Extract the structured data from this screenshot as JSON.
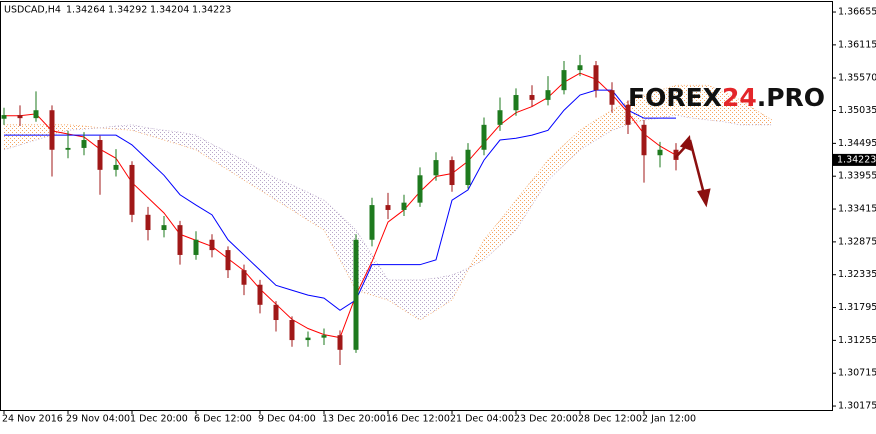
{
  "chart_data": {
    "type": "candlestick",
    "symbol": "USDCAD,H4",
    "ohlc_info": [
      1.34264,
      1.34292,
      1.34204,
      1.34223
    ],
    "current_price": 1.34223,
    "watermark": [
      "FOREX",
      "24",
      ".PRO"
    ],
    "categories": [
      "24 Nov 2016",
      null,
      null,
      null,
      "29 Nov 04:00",
      null,
      null,
      null,
      "1 Dec 20:00",
      null,
      null,
      null,
      "6 Dec 12:00",
      null,
      null,
      null,
      "9 Dec 04:00",
      null,
      null,
      null,
      "13 Dec 20:00",
      null,
      null,
      null,
      "16 Dec 12:00",
      null,
      null,
      null,
      "21 Dec 04:00",
      null,
      null,
      null,
      "23 Dec 20:00",
      null,
      null,
      null,
      "28 Dec 12:00",
      null,
      null,
      null,
      "2 Jan 12:00",
      null,
      null,
      null,
      null,
      null,
      null,
      null,
      null
    ],
    "open": [
      1.349,
      1.3496,
      1.3491,
      1.3504,
      1.3439,
      1.3442,
      1.3455,
      1.3406,
      1.3414,
      1.3332,
      1.3307,
      1.3315,
      1.3266,
      1.3291,
      1.3274,
      1.3241,
      1.3217,
      1.3184,
      1.3159,
      1.3126,
      1.313,
      1.3134,
      1.311,
      1.3291,
      1.3348,
      1.334,
      1.3352,
      1.3397,
      1.3422,
      1.3381,
      1.3439,
      1.348,
      1.3504,
      1.3529,
      1.3521,
      1.3537,
      1.357,
      1.3578,
      1.3537,
      1.3513,
      1.348,
      1.343,
      1.3439,
      null,
      null,
      null,
      null,
      null,
      null
    ],
    "high": [
      1.3508,
      1.3512,
      1.3535,
      1.3512,
      1.347,
      1.3468,
      1.3462,
      1.344,
      1.342,
      1.3345,
      1.333,
      1.3322,
      1.3305,
      1.33,
      1.328,
      1.325,
      1.3225,
      1.319,
      1.3165,
      1.314,
      1.3145,
      1.3142,
      1.33,
      1.336,
      1.3368,
      1.3365,
      1.341,
      1.3435,
      1.3428,
      1.345,
      1.3492,
      1.3525,
      1.354,
      1.3545,
      1.356,
      1.3585,
      1.3595,
      1.3585,
      1.355,
      1.352,
      1.3488,
      1.3452,
      1.345,
      null,
      null,
      null,
      null,
      null,
      null
    ],
    "low": [
      1.348,
      1.3478,
      1.3485,
      1.3395,
      1.3425,
      1.343,
      1.3365,
      1.3395,
      1.332,
      1.329,
      1.3295,
      1.325,
      1.3258,
      1.3262,
      1.3228,
      1.32,
      1.317,
      1.314,
      1.3115,
      1.3115,
      1.3118,
      1.3085,
      1.3105,
      1.328,
      1.3325,
      1.333,
      1.3345,
      1.3388,
      1.337,
      1.3375,
      1.343,
      1.347,
      1.3495,
      1.351,
      1.3512,
      1.353,
      1.356,
      1.3525,
      1.35,
      1.3465,
      1.3385,
      1.341,
      1.3405,
      null,
      null,
      null,
      null,
      null,
      null
    ],
    "close": [
      1.3496,
      1.3491,
      1.3504,
      1.3439,
      1.3442,
      1.3455,
      1.3406,
      1.3414,
      1.3332,
      1.3307,
      1.3315,
      1.3266,
      1.3291,
      1.3274,
      1.3241,
      1.3217,
      1.3184,
      1.3159,
      1.3126,
      1.313,
      1.3134,
      1.311,
      1.3291,
      1.3348,
      1.334,
      1.3352,
      1.3397,
      1.3422,
      1.3381,
      1.3439,
      1.348,
      1.3504,
      1.3529,
      1.3521,
      1.3537,
      1.357,
      1.3578,
      1.3537,
      1.3513,
      1.348,
      1.343,
      1.3439,
      1.34223,
      null,
      null,
      null,
      null,
      null,
      null
    ],
    "up_color": "#1e7a1e",
    "down_color": "#a01818",
    "lines": [
      {
        "color": "#ff0000",
        "values": [
          1.3495,
          1.3495,
          1.3498,
          1.347,
          1.3465,
          1.346,
          1.344,
          1.3425,
          1.3385,
          1.336,
          1.3335,
          1.33,
          1.329,
          1.328,
          1.326,
          1.324,
          1.321,
          1.3185,
          1.316,
          1.3145,
          1.3135,
          1.313,
          1.32,
          1.3255,
          1.332,
          1.334,
          1.337,
          1.3395,
          1.34,
          1.342,
          1.345,
          1.348,
          1.35,
          1.351,
          1.3525,
          1.355,
          1.3565,
          1.3555,
          1.353,
          1.35,
          1.3465,
          1.3445,
          1.343,
          null,
          null,
          null,
          null,
          null,
          null
        ]
      },
      {
        "color": "#0000ff",
        "values": [
          1.3463,
          1.3463,
          1.3463,
          1.3463,
          1.3463,
          1.3463,
          1.3463,
          1.3463,
          1.3447,
          1.3422,
          1.3397,
          1.3365,
          1.3348,
          1.3332,
          1.3291,
          1.3266,
          1.3241,
          1.3216,
          1.3208,
          1.32,
          1.3195,
          1.3175,
          1.3192,
          1.325,
          1.325,
          1.325,
          1.325,
          1.3258,
          1.3356,
          1.3373,
          1.3422,
          1.3455,
          1.3458,
          1.3463,
          1.3471,
          1.3504,
          1.3529,
          1.3537,
          1.3537,
          1.3504,
          1.3491,
          1.3491,
          1.3491,
          null,
          null,
          null,
          null,
          null,
          null
        ]
      }
    ],
    "cloud": {
      "span_a": [
        1.348,
        1.348,
        1.348,
        1.348,
        1.348,
        1.3478,
        1.3475,
        1.3473,
        1.3471,
        1.3463,
        1.3455,
        1.3447,
        1.3439,
        1.3422,
        1.3406,
        1.3389,
        1.3373,
        1.3356,
        1.334,
        1.3323,
        1.3307,
        1.3258,
        1.3208,
        1.32,
        1.3192,
        1.3175,
        1.3159,
        1.3175,
        1.3192,
        1.3241,
        1.3291,
        1.3323,
        1.3356,
        1.3389,
        1.3422,
        1.3447,
        1.3471,
        1.3488,
        1.3504,
        1.3518,
        1.3529,
        1.3537,
        1.3545,
        1.3545,
        1.3545,
        1.3534,
        1.3521,
        1.3504,
        1.3488
      ],
      "span_b": [
        1.3439,
        1.3447,
        1.3455,
        1.3463,
        1.3471,
        1.3473,
        1.3475,
        1.3478,
        1.348,
        1.3475,
        1.3471,
        1.3468,
        1.3463,
        1.3448,
        1.3435,
        1.3422,
        1.3406,
        1.3392,
        1.3381,
        1.3369,
        1.3356,
        1.3332,
        1.3307,
        1.3266,
        1.3225,
        1.3225,
        1.3225,
        1.3228,
        1.3233,
        1.3244,
        1.3258,
        1.3282,
        1.3307,
        1.3348,
        1.3389,
        1.3414,
        1.3439,
        1.3455,
        1.3471,
        1.348,
        1.3488,
        1.3491,
        1.3496,
        1.3491,
        1.3488,
        1.3485,
        1.348,
        1.348,
        1.348
      ],
      "up_color": "#f4a460",
      "down_color": "#b9a8c9"
    },
    "ylim": [
      1.3011,
      1.3682
    ],
    "yticks": [
      1.36655,
      1.36115,
      {
        "value": 1.3557,
        "label": "1.35570"
      },
      1.35035,
      1.34495,
      1.33955,
      1.33415,
      1.32875,
      1.32335,
      1.31795,
      1.31255,
      1.30715,
      1.30175
    ]
  }
}
